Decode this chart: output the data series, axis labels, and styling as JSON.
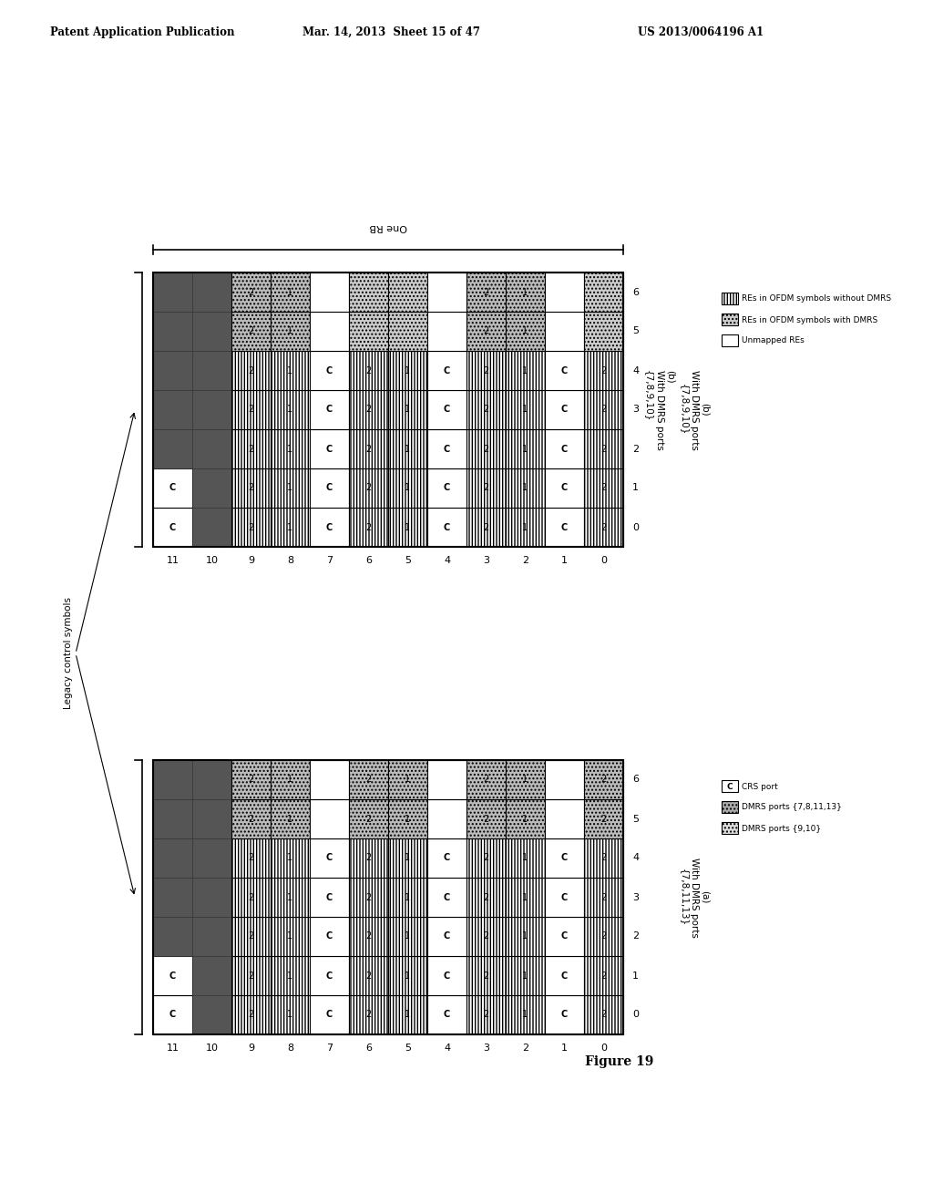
{
  "header_left": "Patent Application Publication",
  "header_mid": "Mar. 14, 2013  Sheet 15 of 47",
  "header_right": "US 2013/0064196 A1",
  "figure_label": "Figure 19",
  "diagram_b_title": "(b)\nWith DMRS ports\n{7,8,9,10}",
  "diagram_a_title": "(a)\nWith DMRS ports\n{7,8,11,13}",
  "one_rb_label": "One RB",
  "legacy_label": "Legacy control symbols",
  "legend_b": [
    "REs in OFDM symbols without DMRS",
    "REs in OFDM symbols with DMRS",
    "Unmapped REs"
  ],
  "legend_a_items": [
    "CRS port",
    "DMRS ports {7,8,11,13}",
    "DMRS ports {9,10}"
  ],
  "bg_color": "#ffffff",
  "dark_color": "#555555",
  "xlabels": [
    11,
    10,
    9,
    8,
    7,
    6,
    5,
    4,
    3,
    2,
    1,
    0
  ],
  "ylabels": [
    0,
    1,
    2,
    3,
    4,
    5,
    6
  ],
  "bx0": 168,
  "by0_b": 720,
  "bx0_a": 168,
  "by0_a": 185,
  "cw": 43,
  "ch": 43,
  "ncols": 12,
  "nrows": 7
}
